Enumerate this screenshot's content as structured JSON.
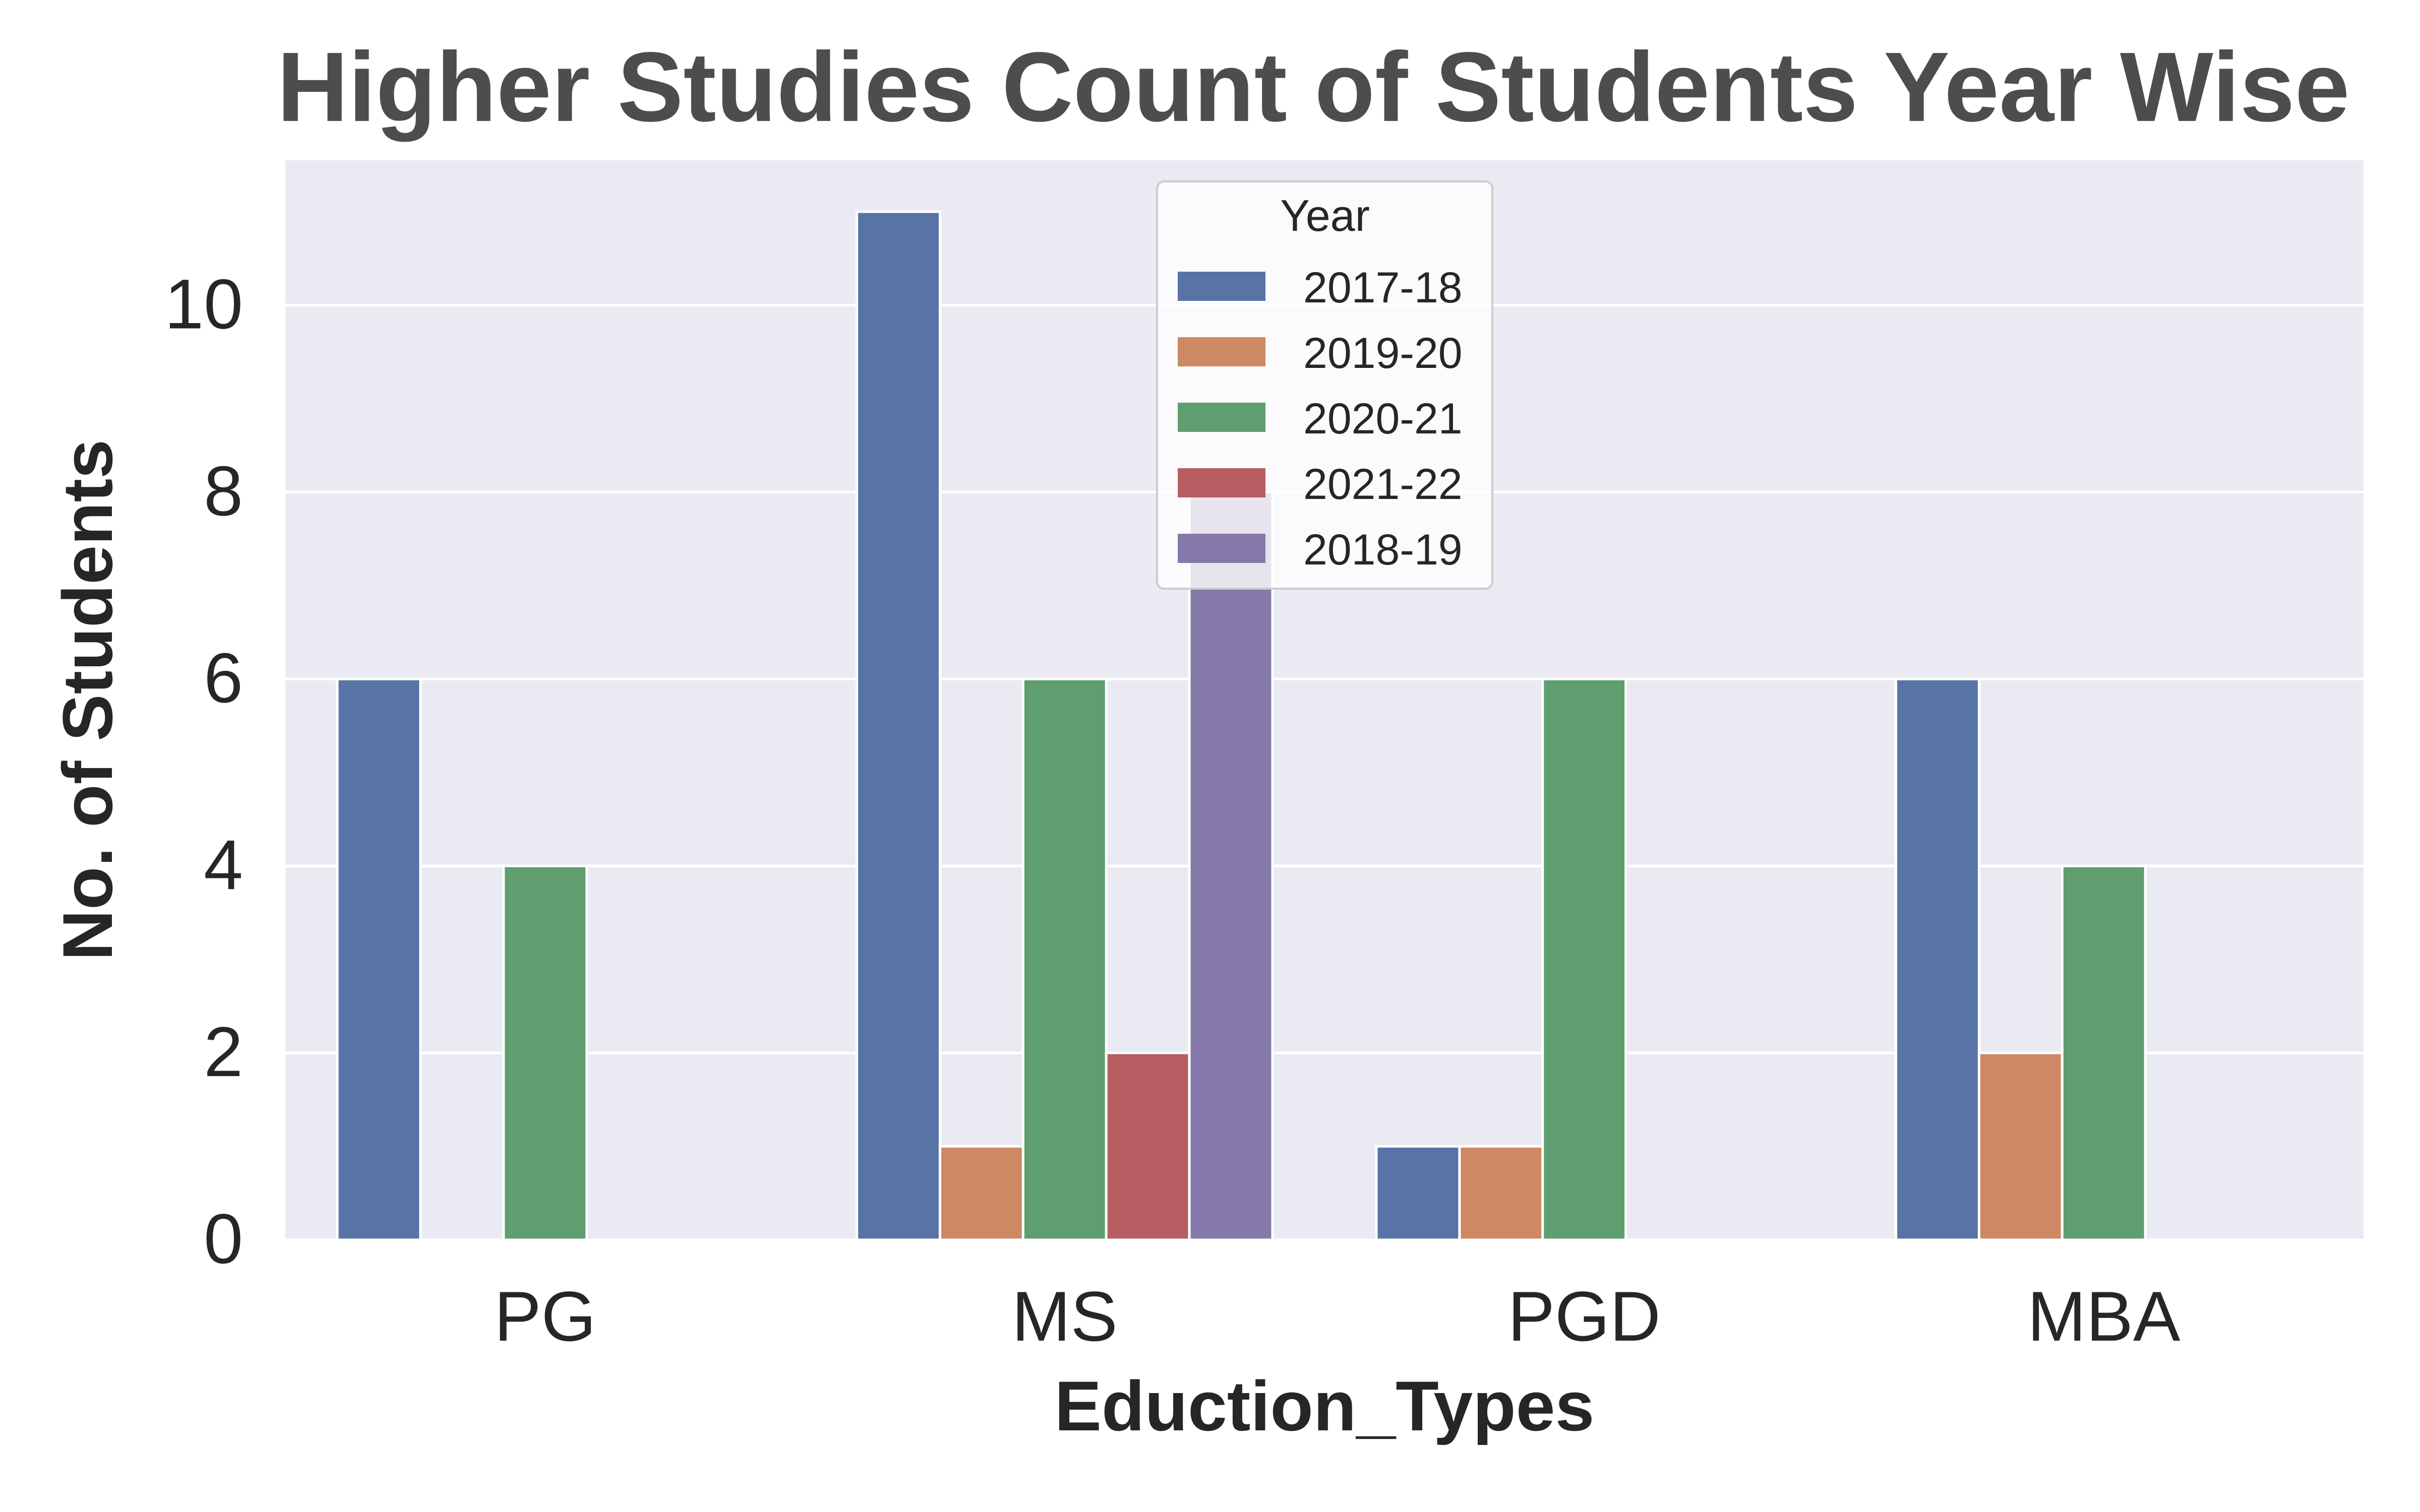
{
  "chart_data": {
    "type": "bar",
    "title": "Higher Studies Count of Students Year Wise",
    "xlabel": "Eduction_Types",
    "ylabel": "No. of Students",
    "categories": [
      "PG",
      "MS",
      "PGD",
      "MBA"
    ],
    "ylim": [
      0,
      11.55
    ],
    "yticks": [
      "0",
      "2",
      "4",
      "6",
      "8",
      "10"
    ],
    "grid": true,
    "legend": {
      "title": "Year",
      "placement": "top-center"
    },
    "series": [
      {
        "name": "2017-18",
        "color": "#5874a6",
        "values": [
          6,
          11,
          1,
          6
        ]
      },
      {
        "name": "2019-20",
        "color": "#cc8963",
        "values": [
          0,
          1,
          1,
          2
        ]
      },
      {
        "name": "2020-21",
        "color": "#5f9e6e",
        "values": [
          4,
          6,
          6,
          4
        ]
      },
      {
        "name": "2021-22",
        "color": "#b55d60",
        "values": [
          0,
          2,
          0,
          0
        ]
      },
      {
        "name": "2018-19",
        "color": "#857aab",
        "values": [
          0,
          8,
          0,
          0
        ]
      }
    ],
    "background": "#eaeaf2"
  }
}
